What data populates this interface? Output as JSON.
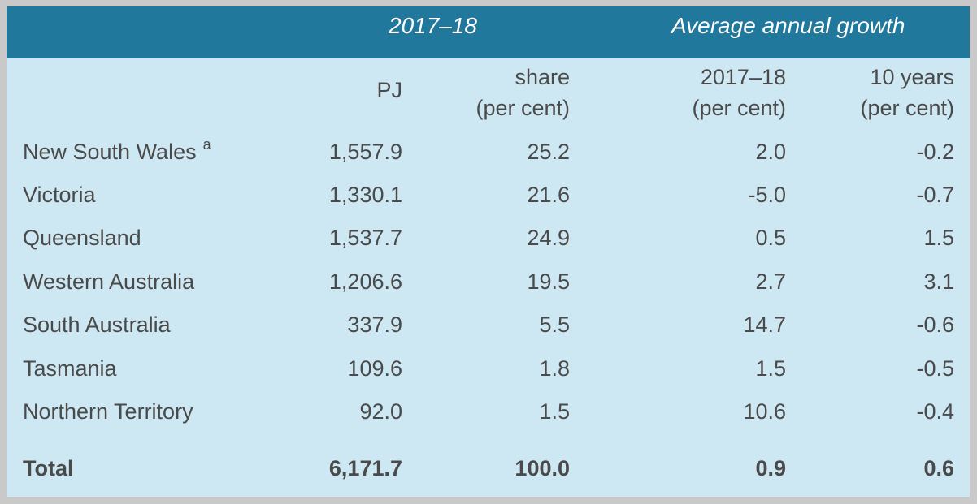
{
  "header": {
    "group_left": "2017–18",
    "group_right": "Average annual growth"
  },
  "columns": {
    "pj": "PJ",
    "share_line1": "share",
    "share_line2": "(per cent)",
    "g1718_line1": "2017–18",
    "g1718_line2": "(per cent)",
    "g10_line1": "10 years",
    "g10_line2": "(per cent)"
  },
  "rows": [
    {
      "name": "New South Wales",
      "note": "a",
      "pj": "1,557.9",
      "share": "25.2",
      "g1718": "2.0",
      "g10": "-0.2"
    },
    {
      "name": "Victoria",
      "note": "",
      "pj": "1,330.1",
      "share": "21.6",
      "g1718": "-5.0",
      "g10": "-0.7"
    },
    {
      "name": "Queensland",
      "note": "",
      "pj": "1,537.7",
      "share": "24.9",
      "g1718": "0.5",
      "g10": "1.5"
    },
    {
      "name": "Western Australia",
      "note": "",
      "pj": "1,206.6",
      "share": "19.5",
      "g1718": "2.7",
      "g10": "3.1"
    },
    {
      "name": "South Australia",
      "note": "",
      "pj": "337.9",
      "share": "5.5",
      "g1718": "14.7",
      "g10": "-0.6"
    },
    {
      "name": "Tasmania",
      "note": "",
      "pj": "109.6",
      "share": "1.8",
      "g1718": "1.5",
      "g10": "-0.5"
    },
    {
      "name": "Northern Territory",
      "note": "",
      "pj": "92.0",
      "share": "1.5",
      "g1718": "10.6",
      "g10": "-0.4"
    }
  ],
  "total": {
    "name": "Total",
    "pj": "6,171.7",
    "share": "100.0",
    "g1718": "0.9",
    "g10": "0.6"
  }
}
